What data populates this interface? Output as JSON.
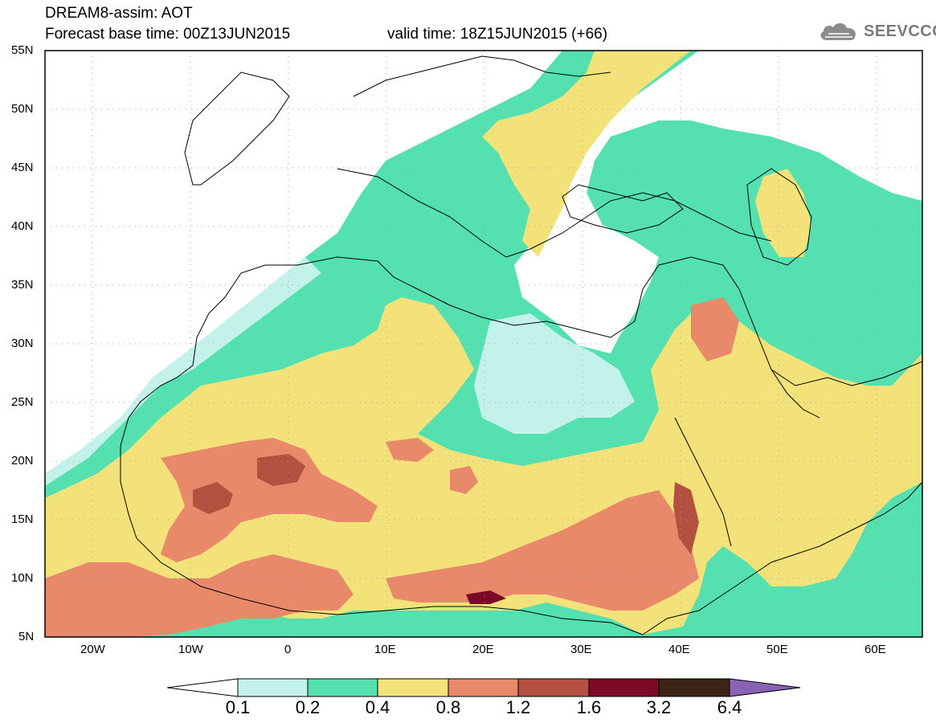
{
  "header": {
    "title": "DREAM8-assim: AOT",
    "base_time": "Forecast base time: 00Z13JUN2015",
    "valid_time": "valid time: 18Z15JUN2015 (+66)"
  },
  "logo": {
    "text": "SEEVCCC",
    "icon": "cloud-icon"
  },
  "map": {
    "latitude_labels": [
      "55N",
      "50N",
      "45N",
      "40N",
      "35N",
      "30N",
      "25N",
      "20N",
      "15N",
      "10N",
      "5N"
    ],
    "longitude_labels": [
      "20W",
      "10W",
      "0",
      "10E",
      "20E",
      "30E",
      "40E",
      "50E",
      "60E"
    ]
  },
  "colorbar": {
    "labels": [
      "0.1",
      "0.2",
      "0.4",
      "0.8",
      "1.2",
      "1.6",
      "3.2",
      "6.4"
    ],
    "colors": [
      "#ffffff",
      "#c2f2ea",
      "#55e0b0",
      "#f3e27a",
      "#e8896a",
      "#b3503f",
      "#7a0a26",
      "#3b2316",
      "#8a62b5"
    ]
  }
}
